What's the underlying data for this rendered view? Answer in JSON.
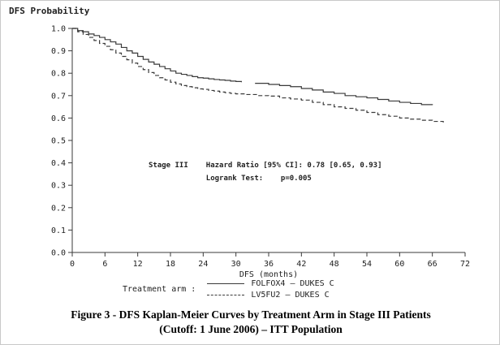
{
  "chart_data": {
    "type": "line",
    "subtype": "kaplan-meier-step",
    "ylabel": "DFS Probability",
    "xlabel": "DFS (months)",
    "xlim": [
      0,
      72
    ],
    "ylim": [
      0.0,
      1.0
    ],
    "x_ticks": [
      0,
      6,
      12,
      18,
      24,
      30,
      36,
      42,
      48,
      54,
      60,
      66,
      72
    ],
    "y_ticks": [
      0.0,
      0.1,
      0.2,
      0.3,
      0.4,
      0.5,
      0.6,
      0.7,
      0.8,
      0.9,
      1.0
    ],
    "grid": false,
    "line_color": "#3a3a3a",
    "series": [
      {
        "name": "FOLFOX4 – DUKES C",
        "style": "solid",
        "segments": [
          [
            [
              0,
              1.0
            ],
            [
              1,
              0.99
            ],
            [
              2,
              0.985
            ],
            [
              3,
              0.975
            ],
            [
              4,
              0.968
            ],
            [
              5,
              0.96
            ],
            [
              6,
              0.95
            ],
            [
              7,
              0.94
            ],
            [
              8,
              0.93
            ],
            [
              9,
              0.915
            ],
            [
              10,
              0.9
            ],
            [
              11,
              0.89
            ],
            [
              12,
              0.875
            ],
            [
              13,
              0.862
            ],
            [
              14,
              0.85
            ],
            [
              15,
              0.84
            ],
            [
              16,
              0.83
            ],
            [
              17,
              0.82
            ],
            [
              18,
              0.81
            ],
            [
              19,
              0.8
            ],
            [
              20,
              0.795
            ],
            [
              21,
              0.79
            ],
            [
              22,
              0.785
            ],
            [
              23,
              0.78
            ],
            [
              24,
              0.778
            ],
            [
              25,
              0.775
            ],
            [
              26,
              0.772
            ],
            [
              27,
              0.77
            ],
            [
              28,
              0.768
            ],
            [
              29,
              0.765
            ],
            [
              30,
              0.763
            ],
            [
              31,
              0.76
            ]
          ],
          [
            [
              33.5,
              0.755
            ],
            [
              36,
              0.75
            ],
            [
              38,
              0.745
            ],
            [
              40,
              0.74
            ],
            [
              42,
              0.732
            ],
            [
              44,
              0.725
            ],
            [
              46,
              0.716
            ],
            [
              48,
              0.71
            ],
            [
              50,
              0.7
            ],
            [
              52,
              0.695
            ],
            [
              54,
              0.69
            ],
            [
              56,
              0.683
            ],
            [
              58,
              0.676
            ],
            [
              60,
              0.67
            ],
            [
              62,
              0.665
            ],
            [
              64,
              0.66
            ],
            [
              66,
              0.658
            ]
          ]
        ]
      },
      {
        "name": "LV5FU2 – DUKES C",
        "style": "dashed",
        "segments": [
          [
            [
              0,
              1.0
            ],
            [
              1,
              0.985
            ],
            [
              2,
              0.973
            ],
            [
              3,
              0.96
            ],
            [
              4,
              0.946
            ],
            [
              5,
              0.933
            ],
            [
              6,
              0.92
            ],
            [
              7,
              0.905
            ],
            [
              8,
              0.89
            ],
            [
              9,
              0.875
            ],
            [
              10,
              0.86
            ],
            [
              11,
              0.845
            ],
            [
              12,
              0.83
            ],
            [
              13,
              0.816
            ],
            [
              14,
              0.803
            ],
            [
              15,
              0.79
            ],
            [
              16,
              0.78
            ],
            [
              17,
              0.77
            ],
            [
              18,
              0.76
            ],
            [
              19,
              0.752
            ],
            [
              20,
              0.745
            ],
            [
              21,
              0.74
            ],
            [
              22,
              0.735
            ],
            [
              23,
              0.73
            ],
            [
              24,
              0.728
            ],
            [
              25,
              0.723
            ],
            [
              26,
              0.72
            ],
            [
              27,
              0.716
            ],
            [
              28,
              0.713
            ],
            [
              29,
              0.71
            ],
            [
              30,
              0.708
            ],
            [
              32,
              0.705
            ],
            [
              34,
              0.7
            ],
            [
              36,
              0.698
            ],
            [
              38,
              0.69
            ],
            [
              40,
              0.685
            ],
            [
              42,
              0.68
            ],
            [
              44,
              0.67
            ],
            [
              46,
              0.66
            ],
            [
              48,
              0.65
            ],
            [
              50,
              0.643
            ],
            [
              52,
              0.635
            ],
            [
              54,
              0.625
            ],
            [
              56,
              0.615
            ],
            [
              58,
              0.608
            ],
            [
              60,
              0.6
            ],
            [
              62,
              0.595
            ],
            [
              64,
              0.59
            ],
            [
              66,
              0.585
            ],
            [
              68,
              0.58
            ]
          ]
        ]
      }
    ],
    "annotations": {
      "group_label": "Stage III",
      "hazard_ratio_label": "Hazard Ratio [95% CI]: 0.78 [0.65, 0.93]",
      "logrank_label": "Logrank Test:    p=0.005"
    },
    "legend": {
      "title": "Treatment arm :",
      "entries": [
        "FOLFOX4 – DUKES C",
        "LV5FU2 – DUKES C"
      ],
      "position": "bottom"
    }
  },
  "caption": {
    "line1": "Figure 3 - DFS Kaplan-Meier Curves by Treatment Arm in Stage III Patients",
    "line2": "(Cutoff: 1 June 2006) – ITT Population"
  }
}
